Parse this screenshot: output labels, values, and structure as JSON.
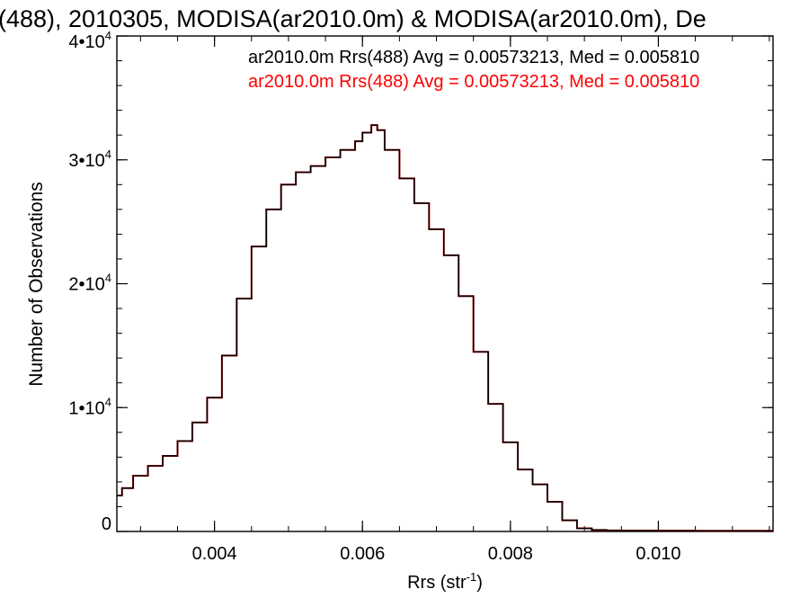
{
  "chart_data": {
    "type": "line",
    "title": "(488), 2010305, MODISA(ar2010.0m) & MODISA(ar2010.0m), De",
    "xlabel": "Rrs (str",
    "xlabel_sup": "-1",
    "xlabel_close": ")",
    "ylabel": "Number of Observations",
    "xlim": [
      0.00268,
      0.01155
    ],
    "ylim": [
      0,
      40000
    ],
    "xticks": [
      0.004,
      0.006,
      0.008,
      0.01
    ],
    "xtick_labels": [
      "0.004",
      "0.006",
      "0.008",
      "0.010"
    ],
    "xminor_step": 0.0005,
    "yticks": [
      {
        "value": 0,
        "label": "0",
        "sup": ""
      },
      {
        "value": 10000,
        "label": "1•10",
        "sup": "4"
      },
      {
        "value": 20000,
        "label": "2•10",
        "sup": "4"
      },
      {
        "value": 30000,
        "label": "3•10",
        "sup": "4"
      },
      {
        "value": 40000,
        "label": "4•10",
        "sup": "4"
      }
    ],
    "yminor_step": 2000,
    "grid": false,
    "annotations": [
      {
        "text": "ar2010.0m Rrs(488) Avg = 0.00573213, Med = 0.005810",
        "color": "#000000"
      },
      {
        "text": "ar2010.0m Rrs(488) Avg = 0.00573213, Med = 0.005810",
        "color": "#ff0000"
      }
    ],
    "series": [
      {
        "color": "#ff0000",
        "x": [
          0.00268,
          0.00275,
          0.0029,
          0.0031,
          0.0033,
          0.0035,
          0.0037,
          0.0039,
          0.0041,
          0.0043,
          0.0045,
          0.0047,
          0.0049,
          0.0051,
          0.0053,
          0.0055,
          0.0057,
          0.0059,
          0.006,
          0.00612,
          0.0062,
          0.0063,
          0.0065,
          0.0067,
          0.0069,
          0.0071,
          0.0073,
          0.0075,
          0.0077,
          0.0079,
          0.0081,
          0.0083,
          0.0085,
          0.0087,
          0.0089,
          0.0091,
          0.0093,
          0.0095,
          0.01,
          0.0105,
          0.011,
          0.01155
        ],
        "y": [
          2900,
          3500,
          4500,
          5300,
          6100,
          7300,
          8800,
          10800,
          14200,
          18800,
          23000,
          26000,
          28000,
          29000,
          29500,
          30200,
          30800,
          31500,
          32200,
          32800,
          32400,
          30800,
          28500,
          26500,
          24400,
          22300,
          19000,
          14500,
          10300,
          7200,
          5000,
          3800,
          2400,
          900,
          250,
          120,
          80,
          70,
          60,
          55,
          50,
          50
        ]
      },
      {
        "color": "#000000",
        "x": [
          0.00268,
          0.00275,
          0.0029,
          0.0031,
          0.0033,
          0.0035,
          0.0037,
          0.0039,
          0.0041,
          0.0043,
          0.0045,
          0.0047,
          0.0049,
          0.0051,
          0.0053,
          0.0055,
          0.0057,
          0.0059,
          0.006,
          0.00612,
          0.0062,
          0.0063,
          0.0065,
          0.0067,
          0.0069,
          0.0071,
          0.0073,
          0.0075,
          0.0077,
          0.0079,
          0.0081,
          0.0083,
          0.0085,
          0.0087,
          0.0089,
          0.0091,
          0.0093,
          0.0095,
          0.01,
          0.0105,
          0.011,
          0.01155
        ],
        "y": [
          2900,
          3500,
          4500,
          5300,
          6100,
          7300,
          8800,
          10800,
          14200,
          18800,
          23000,
          26000,
          28000,
          29000,
          29500,
          30200,
          30800,
          31500,
          32200,
          32800,
          32400,
          30800,
          28500,
          26500,
          24400,
          22300,
          19000,
          14500,
          10300,
          7200,
          5000,
          3800,
          2400,
          900,
          250,
          120,
          80,
          70,
          60,
          55,
          50,
          50
        ]
      }
    ]
  }
}
